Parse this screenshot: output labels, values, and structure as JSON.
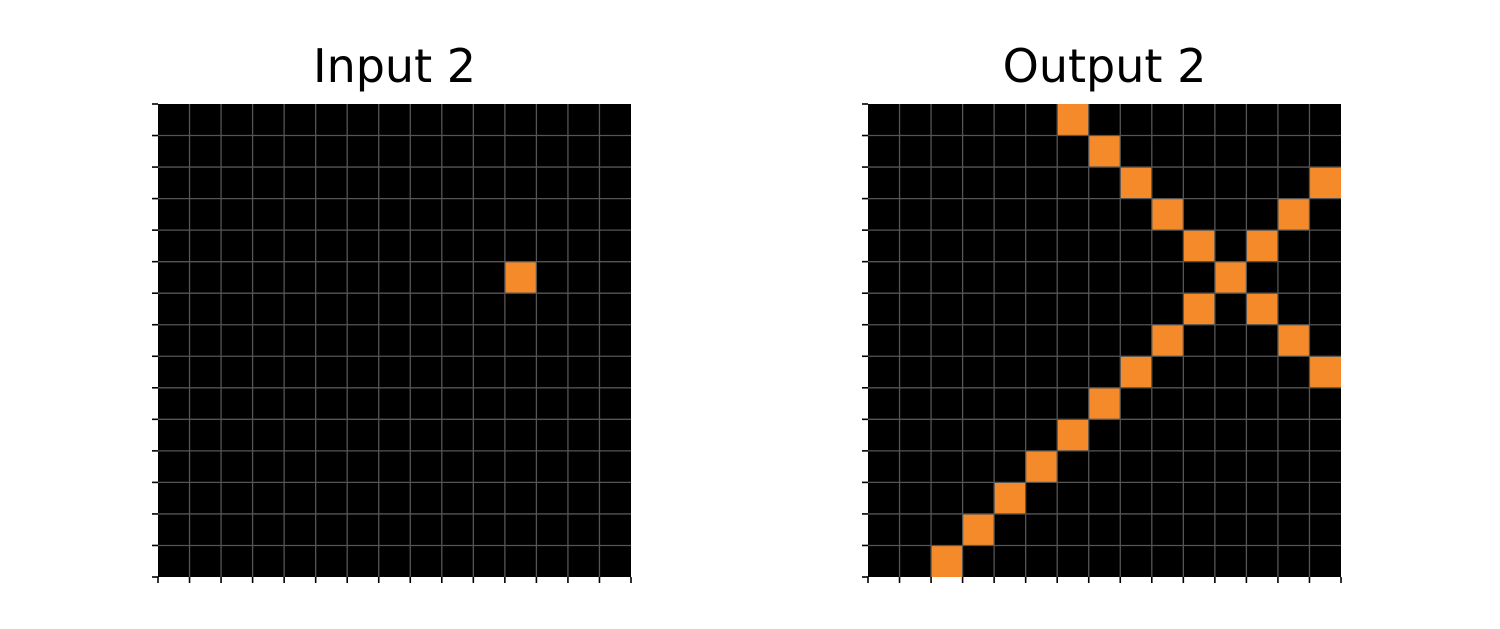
{
  "panels": [
    {
      "id": "input",
      "title": "Input 2",
      "rows": 15,
      "cols": 15,
      "background_color": "#000000",
      "gridline_color": "#555555",
      "cell_color": "#f48a29",
      "filled_cells": [
        [
          5,
          11
        ]
      ]
    },
    {
      "id": "output",
      "title": "Output 2",
      "rows": 15,
      "cols": 15,
      "background_color": "#000000",
      "gridline_color": "#555555",
      "cell_color": "#f48a29",
      "filled_cells": [
        [
          0,
          6
        ],
        [
          1,
          7
        ],
        [
          2,
          8
        ],
        [
          3,
          9
        ],
        [
          4,
          10
        ],
        [
          5,
          11
        ],
        [
          6,
          10
        ],
        [
          7,
          9
        ],
        [
          8,
          8
        ],
        [
          9,
          7
        ],
        [
          10,
          6
        ],
        [
          11,
          5
        ],
        [
          12,
          4
        ],
        [
          13,
          3
        ],
        [
          14,
          2
        ],
        [
          2,
          14
        ],
        [
          3,
          13
        ],
        [
          4,
          12
        ],
        [
          6,
          12
        ],
        [
          7,
          13
        ],
        [
          8,
          14
        ]
      ]
    }
  ]
}
